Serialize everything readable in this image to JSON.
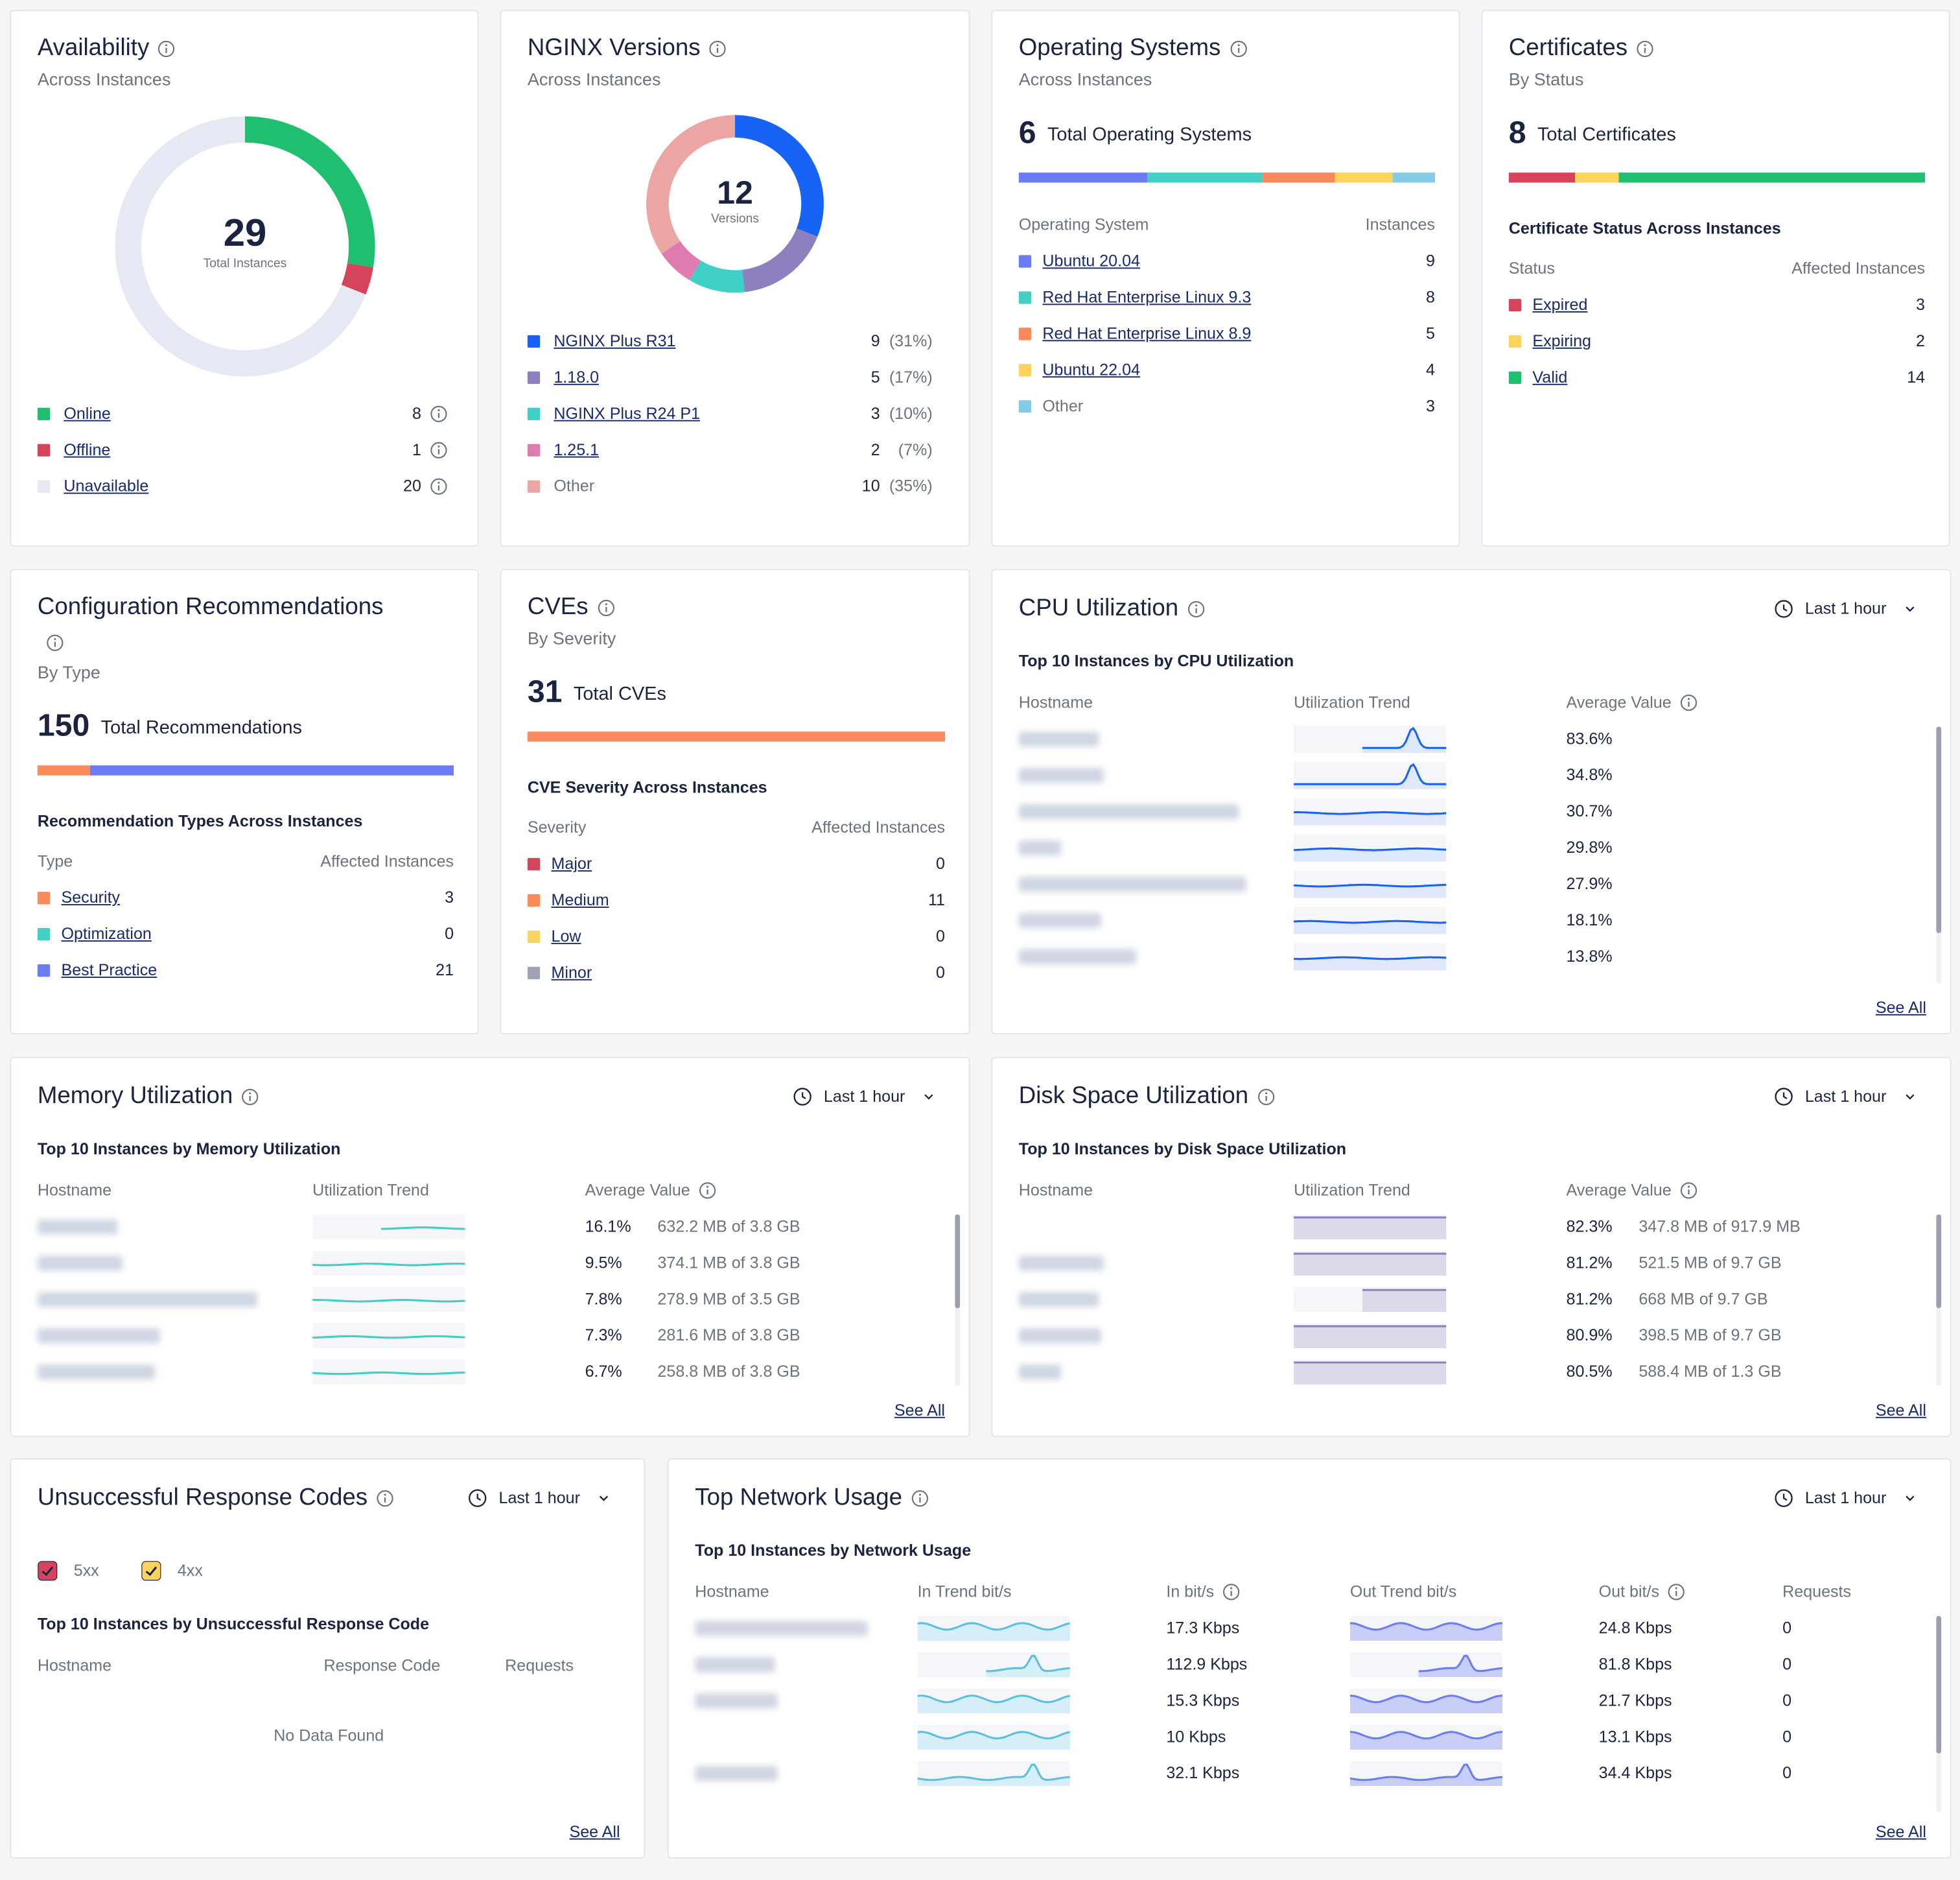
{
  "availability": {
    "title": "Availability",
    "subtitle": "Across Instances",
    "total": 29,
    "total_label": "Total Instances",
    "items": [
      {
        "name": "Online",
        "color": "#1fbf6f",
        "value": 8,
        "link": true
      },
      {
        "name": "Offline",
        "color": "#d4455c",
        "value": 1,
        "link": true
      },
      {
        "name": "Unavailable",
        "color": "#e6e8f3",
        "value": 20,
        "link": true
      }
    ]
  },
  "nginx_versions": {
    "title": "NGINX Versions",
    "subtitle": "Across Instances",
    "total": 12,
    "total_label": "Versions",
    "items": [
      {
        "name": "NGINX Plus R31",
        "color": "#1663f5",
        "value": 9,
        "share": "(31%)",
        "link": true
      },
      {
        "name": "1.18.0",
        "color": "#8e7fbf",
        "value": 5,
        "share": "(17%)",
        "link": true
      },
      {
        "name": "NGINX Plus R24 P1",
        "color": "#3ecfc7",
        "value": 3,
        "share": "(10%)",
        "link": true
      },
      {
        "name": "1.25.1",
        "color": "#e07bb0",
        "value": 2,
        "share": "(7%)",
        "link": true
      },
      {
        "name": "Other",
        "color": "#eba6a3",
        "value": 10,
        "share": "(35%)",
        "link": false
      }
    ]
  },
  "operating_systems": {
    "title": "Operating Systems",
    "subtitle": "Across Instances",
    "total": 6,
    "total_label": "Total Operating Systems",
    "columns": [
      "Operating System",
      "Instances"
    ],
    "items": [
      {
        "name": "Ubuntu 20.04",
        "color": "#6b7cf5",
        "value": 9,
        "link": true
      },
      {
        "name": "Red Hat Enterprise Linux 9.3",
        "color": "#44cfc5",
        "value": 8,
        "link": true
      },
      {
        "name": "Red Hat Enterprise Linux 8.9",
        "color": "#f98a5c",
        "value": 5,
        "link": true
      },
      {
        "name": "Ubuntu 22.04",
        "color": "#fbd460",
        "value": 4,
        "link": true
      },
      {
        "name": "Other",
        "color": "#84cbe8",
        "value": 3,
        "link": false
      }
    ]
  },
  "certificates": {
    "title": "Certificates",
    "subtitle": "By Status",
    "total": 8,
    "total_label": "Total Certificates",
    "section": "Certificate Status Across Instances",
    "columns": [
      "Status",
      "Affected Instances"
    ],
    "items": [
      {
        "name": "Expired",
        "color": "#d4455c",
        "value": 3,
        "link": true
      },
      {
        "name": "Expiring",
        "color": "#fbd460",
        "value": 2,
        "link": true
      },
      {
        "name": "Valid",
        "color": "#1fbf6f",
        "value": 14,
        "link": true
      }
    ]
  },
  "configuration_recommendations": {
    "title": "Configuration Recommendations",
    "subtitle": "By Type",
    "total": 150,
    "total_label": "Total Recommendations",
    "section": "Recommendation Types Across Instances",
    "columns": [
      "Type",
      "Affected Instances"
    ],
    "items": [
      {
        "name": "Security",
        "color": "#f98a5c",
        "value": 3,
        "link": true
      },
      {
        "name": "Optimization",
        "color": "#44cfc5",
        "value": 0,
        "link": true
      },
      {
        "name": "Best Practice",
        "color": "#6b7cf5",
        "value": 21,
        "link": true
      }
    ]
  },
  "cves": {
    "title": "CVEs",
    "subtitle": "By Severity",
    "total": 31,
    "total_label": "Total CVEs",
    "section": "CVE Severity Across Instances",
    "columns": [
      "Severity",
      "Affected Instances"
    ],
    "items": [
      {
        "name": "Major",
        "color": "#d4455c",
        "value": 0,
        "link": true
      },
      {
        "name": "Medium",
        "color": "#f98a5c",
        "value": 11,
        "link": true
      },
      {
        "name": "Low",
        "color": "#fbd460",
        "value": 0,
        "link": true
      },
      {
        "name": "Minor",
        "color": "#9ea3b5",
        "value": 0,
        "link": true
      }
    ]
  },
  "cpu_utilization": {
    "title": "CPU Utilization",
    "range": "Last 1 hour",
    "section": "Top 10 Instances by CPU Utilization",
    "columns": [
      "Hostname",
      "Utilization Trend",
      "Average Value"
    ],
    "rows": [
      {
        "average": "83.6%"
      },
      {
        "average": "34.8%"
      },
      {
        "average": "30.7%"
      },
      {
        "average": "29.8%"
      },
      {
        "average": "27.9%"
      },
      {
        "average": "18.1%"
      },
      {
        "average": "13.8%"
      }
    ],
    "see_all": "See All"
  },
  "memory_utilization": {
    "title": "Memory Utilization",
    "range": "Last 1 hour",
    "section": "Top 10 Instances by Memory Utilization",
    "columns": [
      "Hostname",
      "Utilization Trend",
      "Average Value"
    ],
    "rows": [
      {
        "average": "16.1%",
        "usage": "632.2 MB of 3.8 GB"
      },
      {
        "average": "9.5%",
        "usage": "374.1 MB of 3.8 GB"
      },
      {
        "average": "7.8%",
        "usage": "278.9 MB of 3.5 GB"
      },
      {
        "average": "7.3%",
        "usage": "281.6 MB of 3.8 GB"
      },
      {
        "average": "6.7%",
        "usage": "258.8 MB of 3.8 GB"
      }
    ],
    "see_all": "See All"
  },
  "disk_space_utilization": {
    "title": "Disk Space Utilization",
    "range": "Last 1 hour",
    "section": "Top 10 Instances by Disk Space Utilization",
    "columns": [
      "Hostname",
      "Utilization Trend",
      "Average Value"
    ],
    "rows": [
      {
        "average": "82.3%",
        "usage": "347.8 MB of 917.9 MB"
      },
      {
        "average": "81.2%",
        "usage": "521.5 MB of 9.7 GB"
      },
      {
        "average": "81.2%",
        "usage": "668 MB of 9.7 GB"
      },
      {
        "average": "80.9%",
        "usage": "398.5 MB of 9.7 GB"
      },
      {
        "average": "80.5%",
        "usage": "588.4 MB of 1.3 GB"
      }
    ],
    "see_all": "See All"
  },
  "unsuccessful_response_codes": {
    "title": "Unsuccessful Response Codes",
    "range": "Last 1 hour",
    "filters": [
      {
        "name": "5xx",
        "color": "#d4455c",
        "checked": true
      },
      {
        "name": "4xx",
        "color": "#fbd460",
        "checked": true
      }
    ],
    "section": "Top 10 Instances by Unsuccessful Response Code",
    "columns": [
      "Hostname",
      "Response Code",
      "Requests"
    ],
    "empty": "No Data Found",
    "see_all": "See All"
  },
  "top_network_usage": {
    "title": "Top Network Usage",
    "range": "Last 1 hour",
    "section": "Top 10 Instances by Network Usage",
    "columns": [
      "Hostname",
      "In Trend bit/s",
      "In bit/s",
      "Out Trend bit/s",
      "Out bit/s",
      "Requests"
    ],
    "rows": [
      {
        "in": "17.3 Kbps",
        "out": "24.8 Kbps",
        "requests": 0
      },
      {
        "in": "112.9 Kbps",
        "out": "81.8 Kbps",
        "requests": 0
      },
      {
        "in": "15.3 Kbps",
        "out": "21.7 Kbps",
        "requests": 0
      },
      {
        "in": "10 Kbps",
        "out": "13.1 Kbps",
        "requests": 0
      },
      {
        "in": "32.1 Kbps",
        "out": "34.4 Kbps",
        "requests": 0
      }
    ],
    "see_all": "See All"
  }
}
